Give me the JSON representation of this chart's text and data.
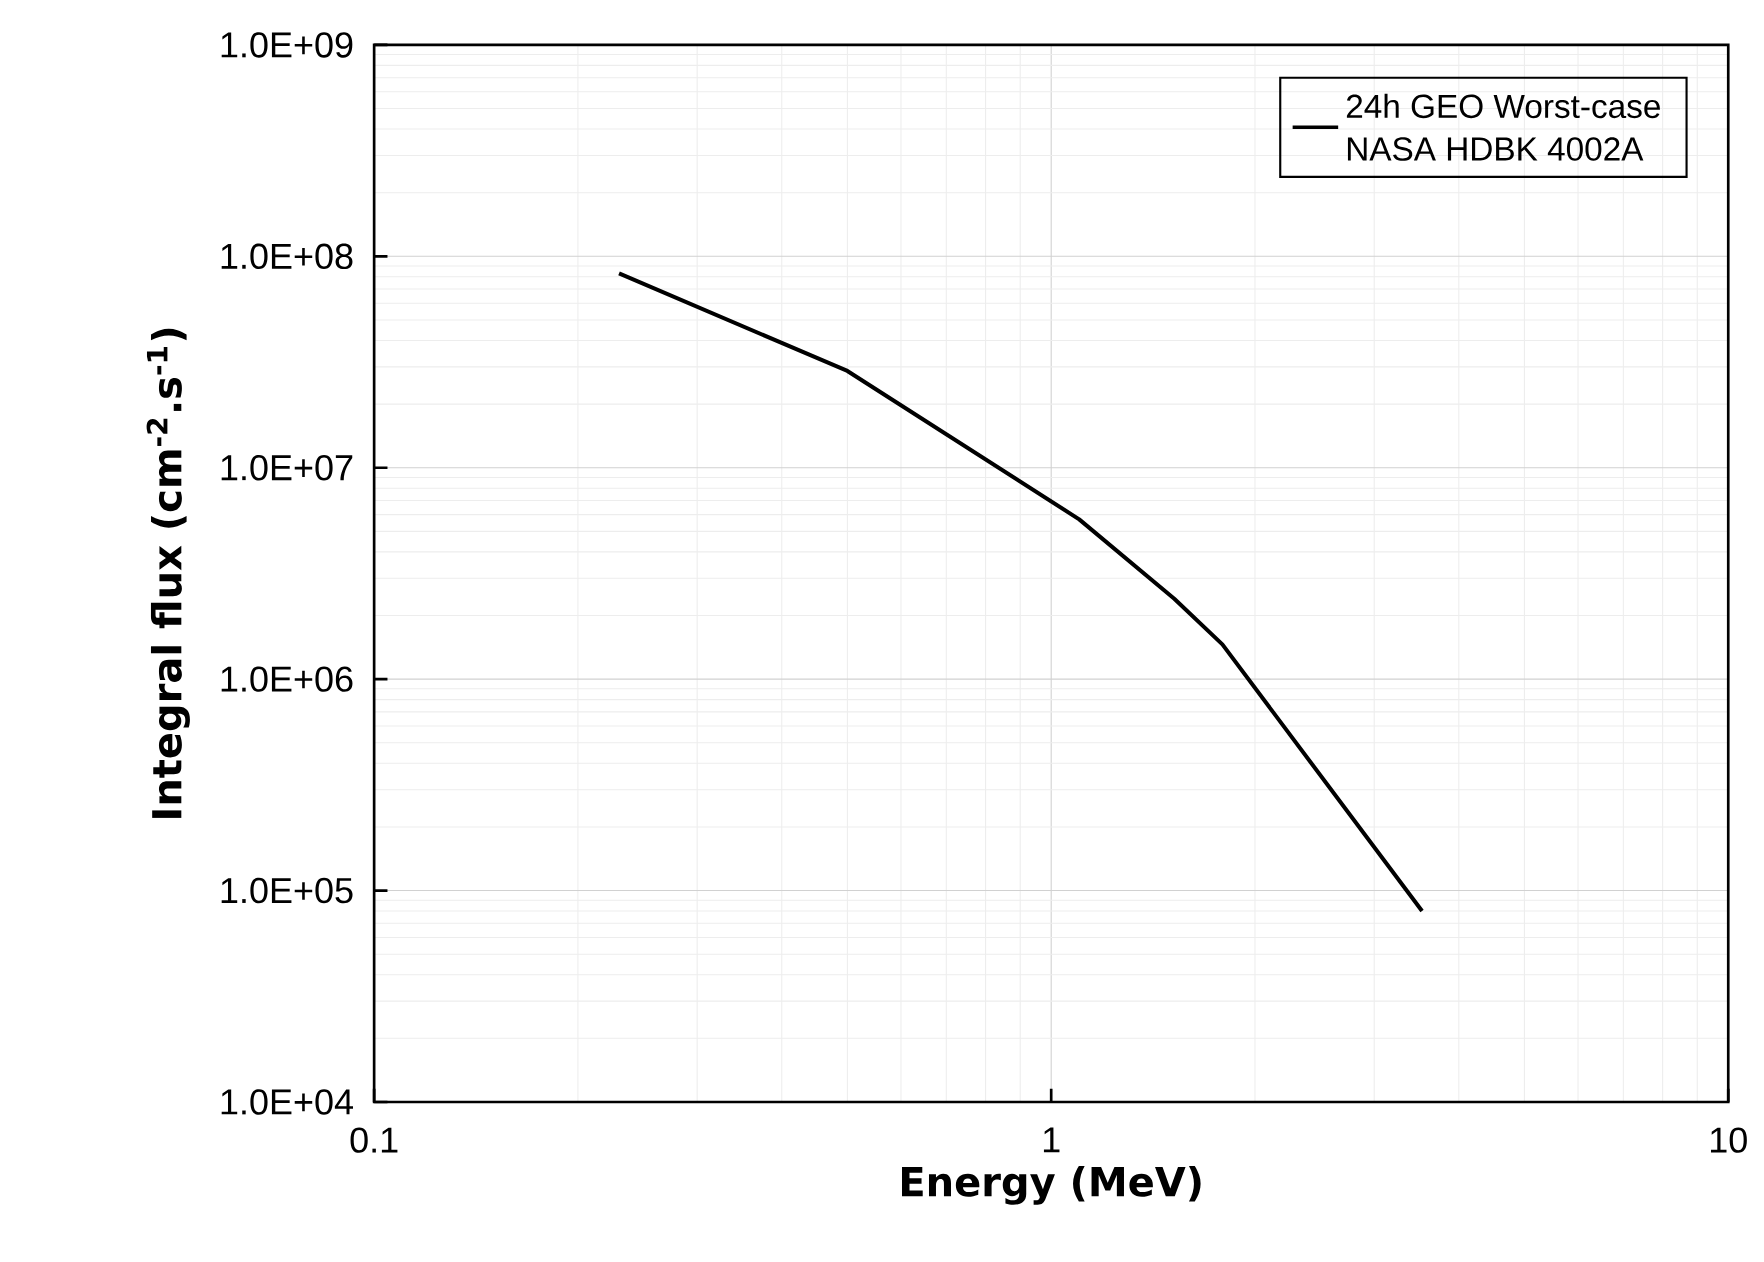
{
  "chart_data": {
    "type": "line",
    "xlabel": "Energy (MeV)",
    "ylabel": "Integral flux (cm$^{-2}$.s$^{-1}$)",
    "log": "xy",
    "grid": true,
    "legend": "top right",
    "marker": "none",
    "line_style": "solid",
    "xlim": [
      0.1,
      10
    ],
    "xticks": [
      0.1,
      1,
      10
    ],
    "ylim": [
      10000,
      1000000000
    ],
    "yticks": [
      {
        "value": 10000,
        "label": "1.0E+04"
      },
      {
        "value": 100000,
        "label": "1.0E+05"
      },
      {
        "value": 1000000,
        "label": "1.0E+06"
      },
      {
        "value": 10000000,
        "label": "1.0E+07"
      },
      {
        "value": 100000000,
        "label": "1.0E+08"
      },
      {
        "value": 1000000000,
        "label": "1.0E+09"
      }
    ],
    "series": [
      {
        "name": "24h GEO Worst-case NASA HDBK 4002A",
        "color": "#000000",
        "x": [
          0.23,
          0.5,
          1.1,
          1.52,
          1.79,
          3.53
        ],
        "values": [
          83000000,
          28700000,
          5700000,
          2400000,
          1460000,
          80000
        ]
      }
    ]
  }
}
